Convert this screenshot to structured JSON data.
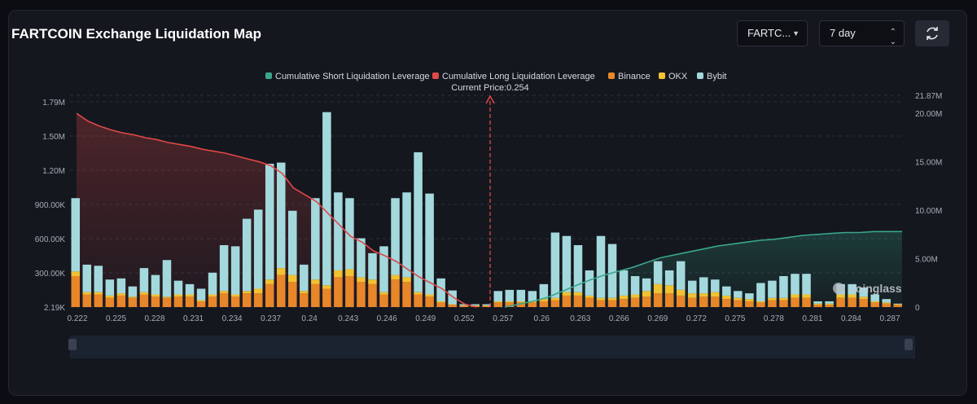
{
  "header": {
    "title": "FARTCOIN Exchange Liquidation Map"
  },
  "controls": {
    "symbol_select": "FARTC...",
    "range_select": "7 day"
  },
  "icons": {
    "refresh": "refresh-icon",
    "dropdown": "chevron-down-icon",
    "stepper": "up-down-chevron-icon"
  },
  "watermark": "coinglass",
  "colors": {
    "binance": "#e8862a",
    "okx": "#f1c232",
    "bybit": "#a3d9dd",
    "long_cum": "#e04848",
    "short_cum": "#3aa68c",
    "current_price": "#e04848"
  },
  "chart_data": {
    "type": "bar",
    "current_price": 0.254,
    "current_price_label": "Current Price:0.254",
    "y_left_ticks": [
      "2.19K",
      "300.00K",
      "600.00K",
      "900.00K",
      "1.20M",
      "1.50M",
      "1.79M"
    ],
    "y_left_range": [
      0,
      1790000
    ],
    "y_right_ticks": [
      "0",
      "5.00M",
      "10.00M",
      "15.00M",
      "20.00M",
      "21.87M"
    ],
    "y_right_range": [
      0,
      21870000
    ],
    "x_ticks": [
      "0.222",
      "0.225",
      "0.228",
      "0.231",
      "0.234",
      "0.237",
      "0.24",
      "0.243",
      "0.246",
      "0.249",
      "0.252",
      "0.257",
      "0.26",
      "0.263",
      "0.266",
      "0.269",
      "0.272",
      "0.275",
      "0.278",
      "0.281",
      "0.284",
      "0.287"
    ],
    "legend": [
      {
        "label": "Cumulative Short Liquidation Leverage",
        "color": "#3aa68c"
      },
      {
        "label": "Cumulative Long Liquidation Leverage",
        "color": "#e04848"
      },
      {
        "label": "Binance",
        "color": "#e8862a"
      },
      {
        "label": "OKX",
        "color": "#f1c232"
      },
      {
        "label": "Bybit",
        "color": "#a3d9dd"
      }
    ],
    "grid": "horizontal-dashed",
    "series": [
      {
        "name": "Binance",
        "values": [
          270000,
          110000,
          110000,
          80000,
          100000,
          80000,
          110000,
          90000,
          80000,
          90000,
          90000,
          50000,
          90000,
          120000,
          90000,
          120000,
          120000,
          200000,
          280000,
          220000,
          120000,
          200000,
          160000,
          260000,
          270000,
          220000,
          200000,
          110000,
          240000,
          220000,
          110000,
          90000,
          40000,
          20000,
          10000,
          10000,
          10000,
          40000,
          40000,
          40000,
          40000,
          50000,
          60000,
          100000,
          100000,
          80000,
          60000,
          60000,
          70000,
          80000,
          90000,
          120000,
          120000,
          100000,
          80000,
          90000,
          90000,
          70000,
          60000,
          50000,
          40000,
          60000,
          60000,
          80000,
          80000,
          20000,
          20000,
          80000,
          80000,
          70000,
          40000,
          30000,
          20000
        ]
      },
      {
        "name": "OKX",
        "values": [
          40000,
          20000,
          20000,
          20000,
          20000,
          10000,
          20000,
          20000,
          10000,
          20000,
          20000,
          10000,
          20000,
          20000,
          20000,
          20000,
          40000,
          40000,
          60000,
          60000,
          20000,
          40000,
          30000,
          60000,
          60000,
          40000,
          40000,
          20000,
          40000,
          40000,
          20000,
          20000,
          10000,
          5000,
          5000,
          5000,
          5000,
          10000,
          10000,
          10000,
          10000,
          20000,
          20000,
          30000,
          30000,
          20000,
          20000,
          20000,
          30000,
          30000,
          50000,
          80000,
          70000,
          50000,
          40000,
          30000,
          40000,
          30000,
          20000,
          20000,
          10000,
          20000,
          20000,
          30000,
          30000,
          10000,
          10000,
          30000,
          30000,
          20000,
          10000,
          10000,
          5000
        ]
      },
      {
        "name": "Bybit",
        "values": [
          640000,
          240000,
          230000,
          140000,
          130000,
          90000,
          210000,
          170000,
          320000,
          120000,
          90000,
          100000,
          190000,
          400000,
          420000,
          630000,
          690000,
          1010000,
          920000,
          560000,
          230000,
          710000,
          1510000,
          680000,
          620000,
          340000,
          230000,
          400000,
          670000,
          740000,
          1220000,
          880000,
          200000,
          120000,
          10000,
          10000,
          10000,
          90000,
          100000,
          100000,
          90000,
          130000,
          570000,
          490000,
          410000,
          220000,
          540000,
          470000,
          220000,
          160000,
          110000,
          200000,
          130000,
          250000,
          110000,
          140000,
          110000,
          80000,
          60000,
          50000,
          160000,
          150000,
          190000,
          180000,
          180000,
          20000,
          20000,
          90000,
          90000,
          80000,
          60000,
          30000,
          5000
        ]
      }
    ],
    "cumulative_long": [
      20000000,
      19200000,
      18700000,
      18300000,
      18000000,
      17800000,
      17500000,
      17300000,
      17000000,
      16800000,
      16600000,
      16300000,
      16100000,
      15900000,
      15600000,
      15300000,
      15000000,
      14600000,
      13800000,
      12300000,
      11600000,
      10900000,
      9700000,
      8500000,
      7300000,
      6700000,
      5800000,
      5300000,
      4700000,
      3900000,
      3100000,
      2500000,
      1900000,
      1000000,
      300000,
      0
    ],
    "cumulative_short": [
      0,
      300000,
      600000,
      1000000,
      1600000,
      2200000,
      2800000,
      3300000,
      3700000,
      4100000,
      4600000,
      5100000,
      5400000,
      5700000,
      6000000,
      6300000,
      6500000,
      6700000,
      6900000,
      7000000,
      7200000,
      7400000,
      7500000,
      7600000,
      7700000,
      7700000,
      7800000,
      7800000,
      7800000
    ]
  }
}
